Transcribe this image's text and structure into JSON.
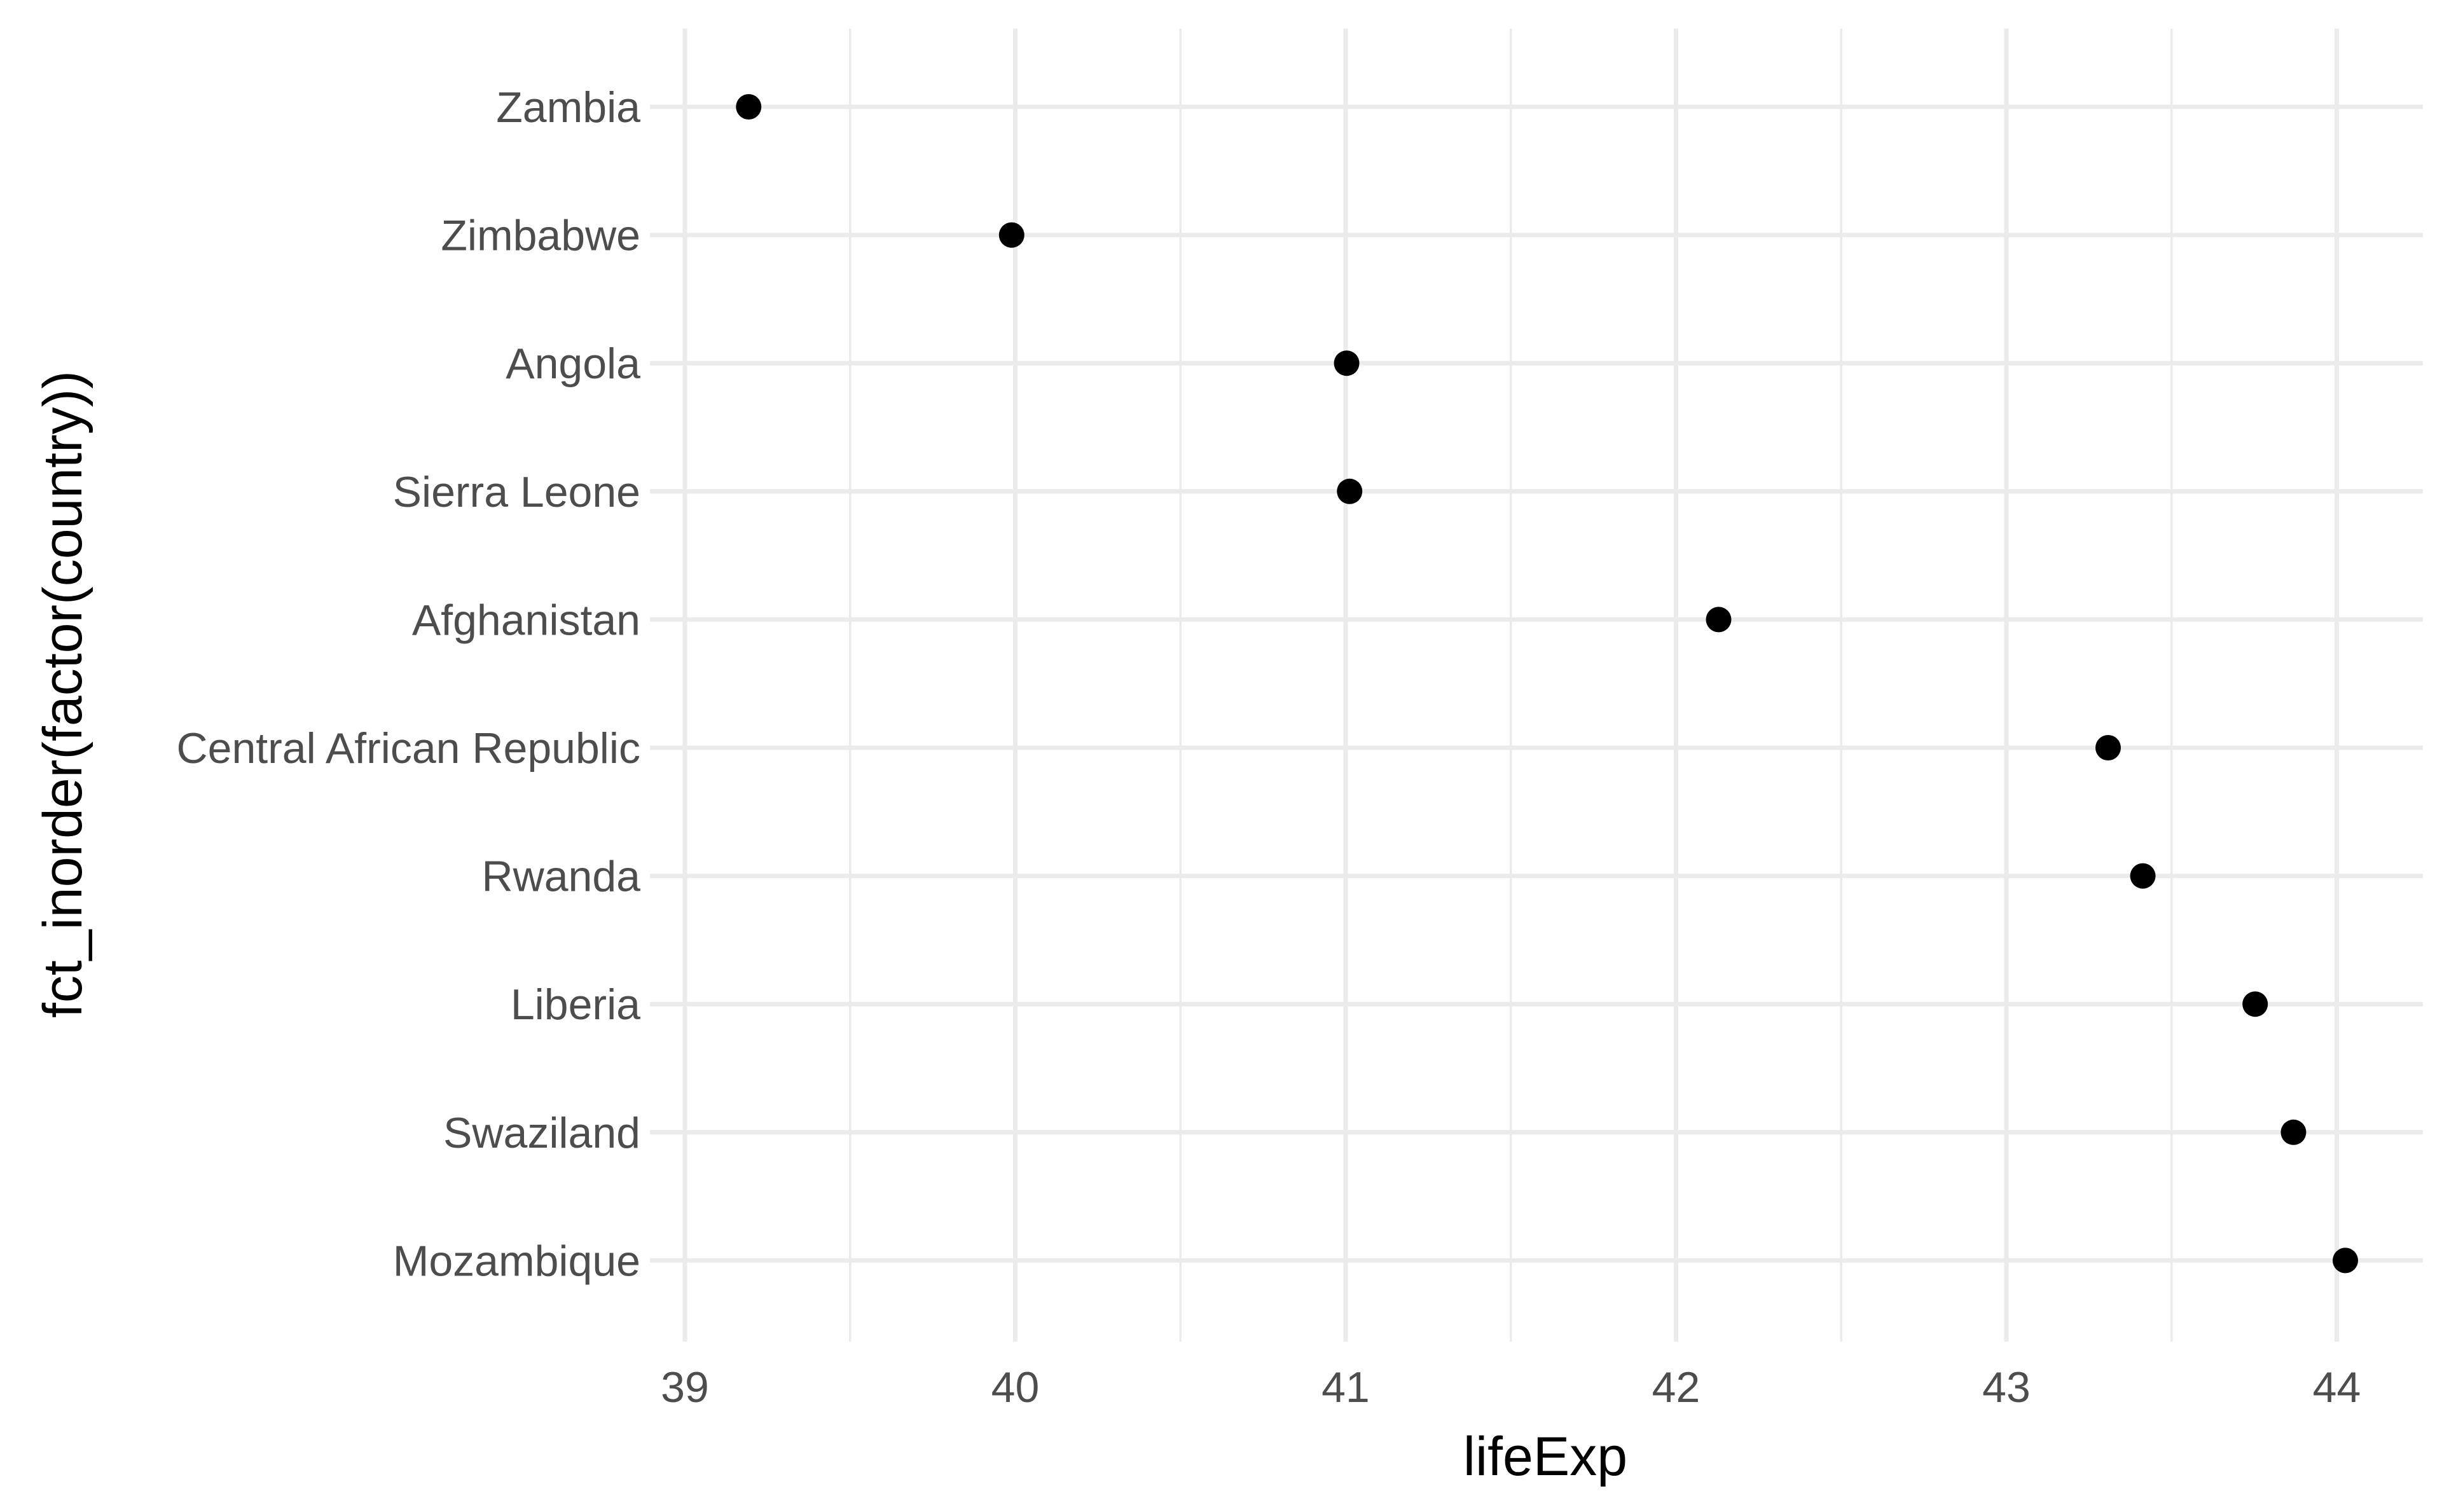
{
  "chart_data": {
    "type": "scatter",
    "title": "",
    "xlabel": "lifeExp",
    "ylabel": "fct_inorder(factor(country))",
    "xlim": [
      38.98,
      44.24
    ],
    "xticks": [
      39,
      40,
      41,
      42,
      43,
      44
    ],
    "x_tick_labels": [
      "39",
      "40",
      "41",
      "42",
      "43",
      "44"
    ],
    "categories": [
      "Zambia",
      "Zimbabwe",
      "Angola",
      "Sierra Leone",
      "Afghanistan",
      "Central African Republic",
      "Rwanda",
      "Liberia",
      "Swaziland",
      "Mozambique"
    ],
    "values": [
      39.193,
      39.989,
      41.003,
      41.012,
      42.129,
      43.308,
      43.413,
      43.753,
      43.869,
      44.026
    ],
    "grid": true,
    "legend": "none",
    "colors": {
      "point": "#000000",
      "grid": "#ebebeb",
      "tick_text": "#4d4d4d",
      "axis_title": "#000000",
      "background": "#ffffff"
    }
  }
}
